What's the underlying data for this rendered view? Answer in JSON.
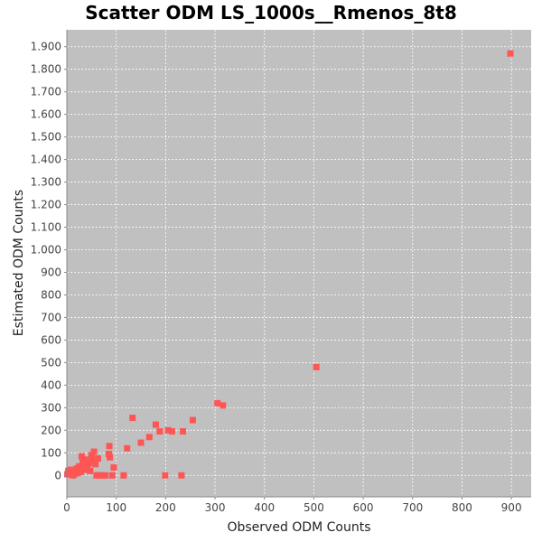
{
  "chart_data": {
    "type": "scatter",
    "title": "Scatter ODM LS_1000s__Rmenos_8t8",
    "xlabel": "Observed ODM Counts",
    "ylabel": "Estimated ODM Counts",
    "xlim": [
      0,
      940
    ],
    "ylim": [
      -95,
      1975
    ],
    "x_ticks": [
      0,
      100,
      200,
      300,
      400,
      500,
      600,
      700,
      800,
      900
    ],
    "x_tick_labels": [
      "0",
      "100",
      "200",
      "300",
      "400",
      "500",
      "600",
      "700",
      "800",
      "900"
    ],
    "y_ticks": [
      0,
      100,
      200,
      300,
      400,
      500,
      600,
      700,
      800,
      900,
      1000,
      1100,
      1200,
      1300,
      1400,
      1500,
      1600,
      1700,
      1800,
      1900
    ],
    "y_tick_labels": [
      "0",
      "100",
      "200",
      "300",
      "400",
      "500",
      "600",
      "700",
      "800",
      "900",
      "1.000",
      "1.100",
      "1.200",
      "1.300",
      "1.400",
      "1.500",
      "1.600",
      "1.700",
      "1.800",
      "1.900"
    ],
    "grid": true,
    "background_color": "#c0c0c0",
    "marker_color": "#ff5555",
    "marker": "square",
    "series": [
      {
        "points": [
          [
            1,
            5
          ],
          [
            3,
            20
          ],
          [
            5,
            10
          ],
          [
            8,
            25
          ],
          [
            10,
            15
          ],
          [
            12,
            0
          ],
          [
            15,
            5
          ],
          [
            18,
            20
          ],
          [
            20,
            30
          ],
          [
            22,
            10
          ],
          [
            25,
            40
          ],
          [
            28,
            15
          ],
          [
            30,
            85
          ],
          [
            32,
            60
          ],
          [
            35,
            45
          ],
          [
            37,
            25
          ],
          [
            40,
            70
          ],
          [
            42,
            35
          ],
          [
            45,
            55
          ],
          [
            47,
            20
          ],
          [
            50,
            90
          ],
          [
            52,
            65
          ],
          [
            55,
            105
          ],
          [
            58,
            50
          ],
          [
            60,
            0
          ],
          [
            63,
            75
          ],
          [
            65,
            0
          ],
          [
            68,
            0
          ],
          [
            72,
            0
          ],
          [
            78,
            0
          ],
          [
            85,
            95
          ],
          [
            86,
            130
          ],
          [
            87,
            80
          ],
          [
            92,
            0
          ],
          [
            95,
            35
          ],
          [
            115,
            0
          ],
          [
            122,
            120
          ],
          [
            133,
            255
          ],
          [
            150,
            145
          ],
          [
            167,
            170
          ],
          [
            180,
            225
          ],
          [
            188,
            195
          ],
          [
            199,
            0
          ],
          [
            205,
            200
          ],
          [
            213,
            195
          ],
          [
            232,
            0
          ],
          [
            235,
            195
          ],
          [
            255,
            245
          ],
          [
            305,
            320
          ],
          [
            316,
            310
          ],
          [
            505,
            480
          ],
          [
            898,
            1870
          ]
        ]
      }
    ]
  }
}
